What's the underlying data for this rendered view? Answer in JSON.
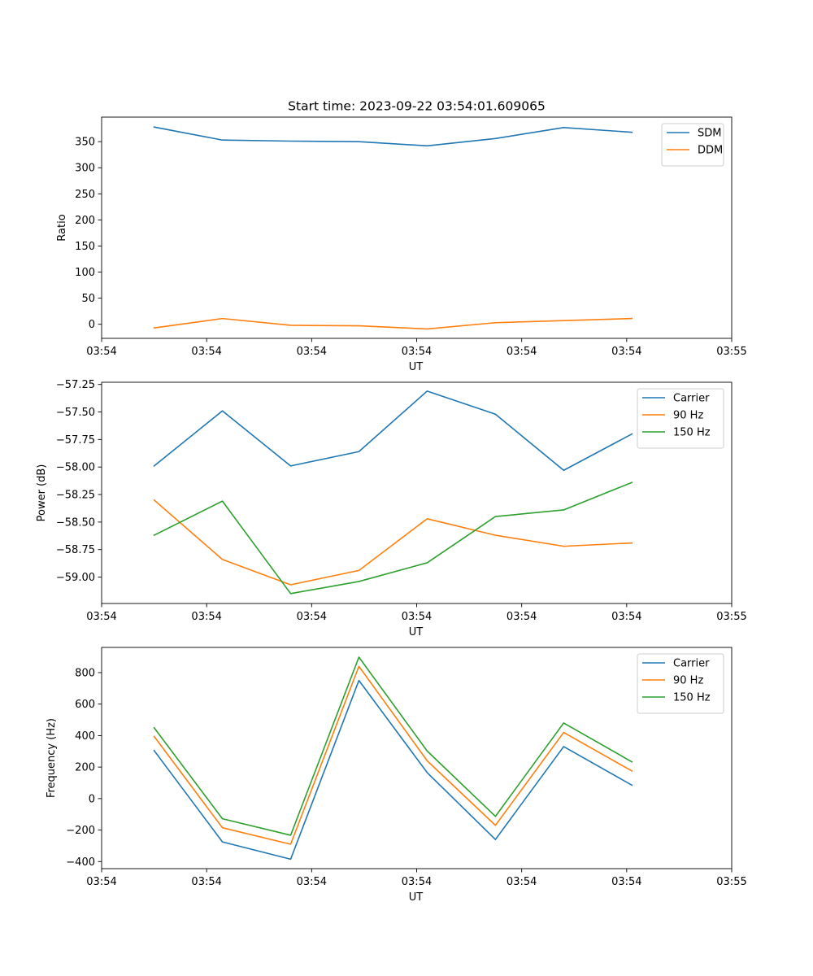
{
  "figure": {
    "title": "Start time: 2023-09-22 03:54:01.609065"
  },
  "colors": {
    "blue": "#1f77b4",
    "orange": "#ff7f0e",
    "green": "#2ca02c"
  },
  "chart_data": [
    {
      "type": "line",
      "title": "Start time: 2023-09-22 03:54:01.609065",
      "xlabel": "UT",
      "ylabel": "Ratio",
      "xlim": [
        0,
        6
      ],
      "ylim": [
        -27,
        397
      ],
      "x": [
        0.5,
        1.15,
        1.8,
        2.45,
        3.1,
        3.75,
        4.4,
        5.05
      ],
      "x_ticks": [
        0.0,
        1.0,
        2.0,
        3.0,
        4.0,
        5.0,
        6.0
      ],
      "x_tick_labels": [
        "03:54",
        "03:54",
        "03:54",
        "03:54",
        "03:54",
        "03:54",
        "03:55"
      ],
      "y_ticks": [
        0,
        50,
        100,
        150,
        200,
        250,
        300,
        350
      ],
      "y_tick_labels": [
        "0",
        "50",
        "100",
        "150",
        "200",
        "250",
        "300",
        "350"
      ],
      "legend": "upper right",
      "series": [
        {
          "name": "SDM",
          "color": "#1f77b4",
          "values": [
            378,
            353,
            351,
            350,
            342,
            356,
            377,
            368
          ]
        },
        {
          "name": "DDM",
          "color": "#ff7f0e",
          "values": [
            -7,
            11,
            -2,
            -3,
            -9,
            3,
            7,
            11
          ]
        }
      ]
    },
    {
      "type": "line",
      "xlabel": "UT",
      "ylabel": "Power (dB)",
      "xlim": [
        0,
        6
      ],
      "ylim": [
        -59.24,
        -57.23
      ],
      "x": [
        0.5,
        1.15,
        1.8,
        2.45,
        3.1,
        3.75,
        4.4,
        5.05
      ],
      "x_ticks": [
        0.0,
        1.0,
        2.0,
        3.0,
        4.0,
        5.0,
        6.0
      ],
      "x_tick_labels": [
        "03:54",
        "03:54",
        "03:54",
        "03:54",
        "03:54",
        "03:54",
        "03:55"
      ],
      "y_ticks": [
        -59.0,
        -58.75,
        -58.5,
        -58.25,
        -58.0,
        -57.75,
        -57.5,
        -57.25
      ],
      "y_tick_labels": [
        "−59.00",
        "−58.75",
        "−58.50",
        "−58.25",
        "−58.00",
        "−57.75",
        "−57.50",
        "−57.25"
      ],
      "legend": "upper right",
      "series": [
        {
          "name": "Carrier",
          "color": "#1f77b4",
          "values": [
            -57.99,
            -57.49,
            -57.99,
            -57.86,
            -57.31,
            -57.52,
            -58.03,
            -57.7
          ]
        },
        {
          "name": "90 Hz",
          "color": "#ff7f0e",
          "values": [
            -58.3,
            -58.84,
            -59.07,
            -58.94,
            -58.47,
            -58.62,
            -58.72,
            -58.69
          ]
        },
        {
          "name": "150 Hz",
          "color": "#2ca02c",
          "values": [
            -58.62,
            -58.31,
            -59.15,
            -59.04,
            -58.87,
            -58.45,
            -58.39,
            -58.14
          ]
        }
      ]
    },
    {
      "type": "line",
      "xlabel": "UT",
      "ylabel": "Frequency (Hz)",
      "xlim": [
        0,
        6
      ],
      "ylim": [
        -445,
        960
      ],
      "x": [
        0.5,
        1.15,
        1.8,
        2.45,
        3.1,
        3.75,
        4.4,
        5.05
      ],
      "x_ticks": [
        0.0,
        1.0,
        2.0,
        3.0,
        4.0,
        5.0,
        6.0
      ],
      "x_tick_labels": [
        "03:54",
        "03:54",
        "03:54",
        "03:54",
        "03:54",
        "03:54",
        "03:55"
      ],
      "y_ticks": [
        -400,
        -200,
        0,
        200,
        400,
        600,
        800
      ],
      "y_tick_labels": [
        "−400",
        "−200",
        "0",
        "200",
        "400",
        "600",
        "800"
      ],
      "legend": "upper right",
      "series": [
        {
          "name": "Carrier",
          "color": "#1f77b4",
          "values": [
            305,
            -275,
            -385,
            750,
            165,
            -260,
            330,
            85
          ]
        },
        {
          "name": "90 Hz",
          "color": "#ff7f0e",
          "values": [
            395,
            -185,
            -290,
            840,
            240,
            -170,
            420,
            175
          ]
        },
        {
          "name": "150 Hz",
          "color": "#2ca02c",
          "values": [
            450,
            -128,
            -233,
            898,
            302,
            -113,
            480,
            233
          ]
        }
      ]
    }
  ]
}
